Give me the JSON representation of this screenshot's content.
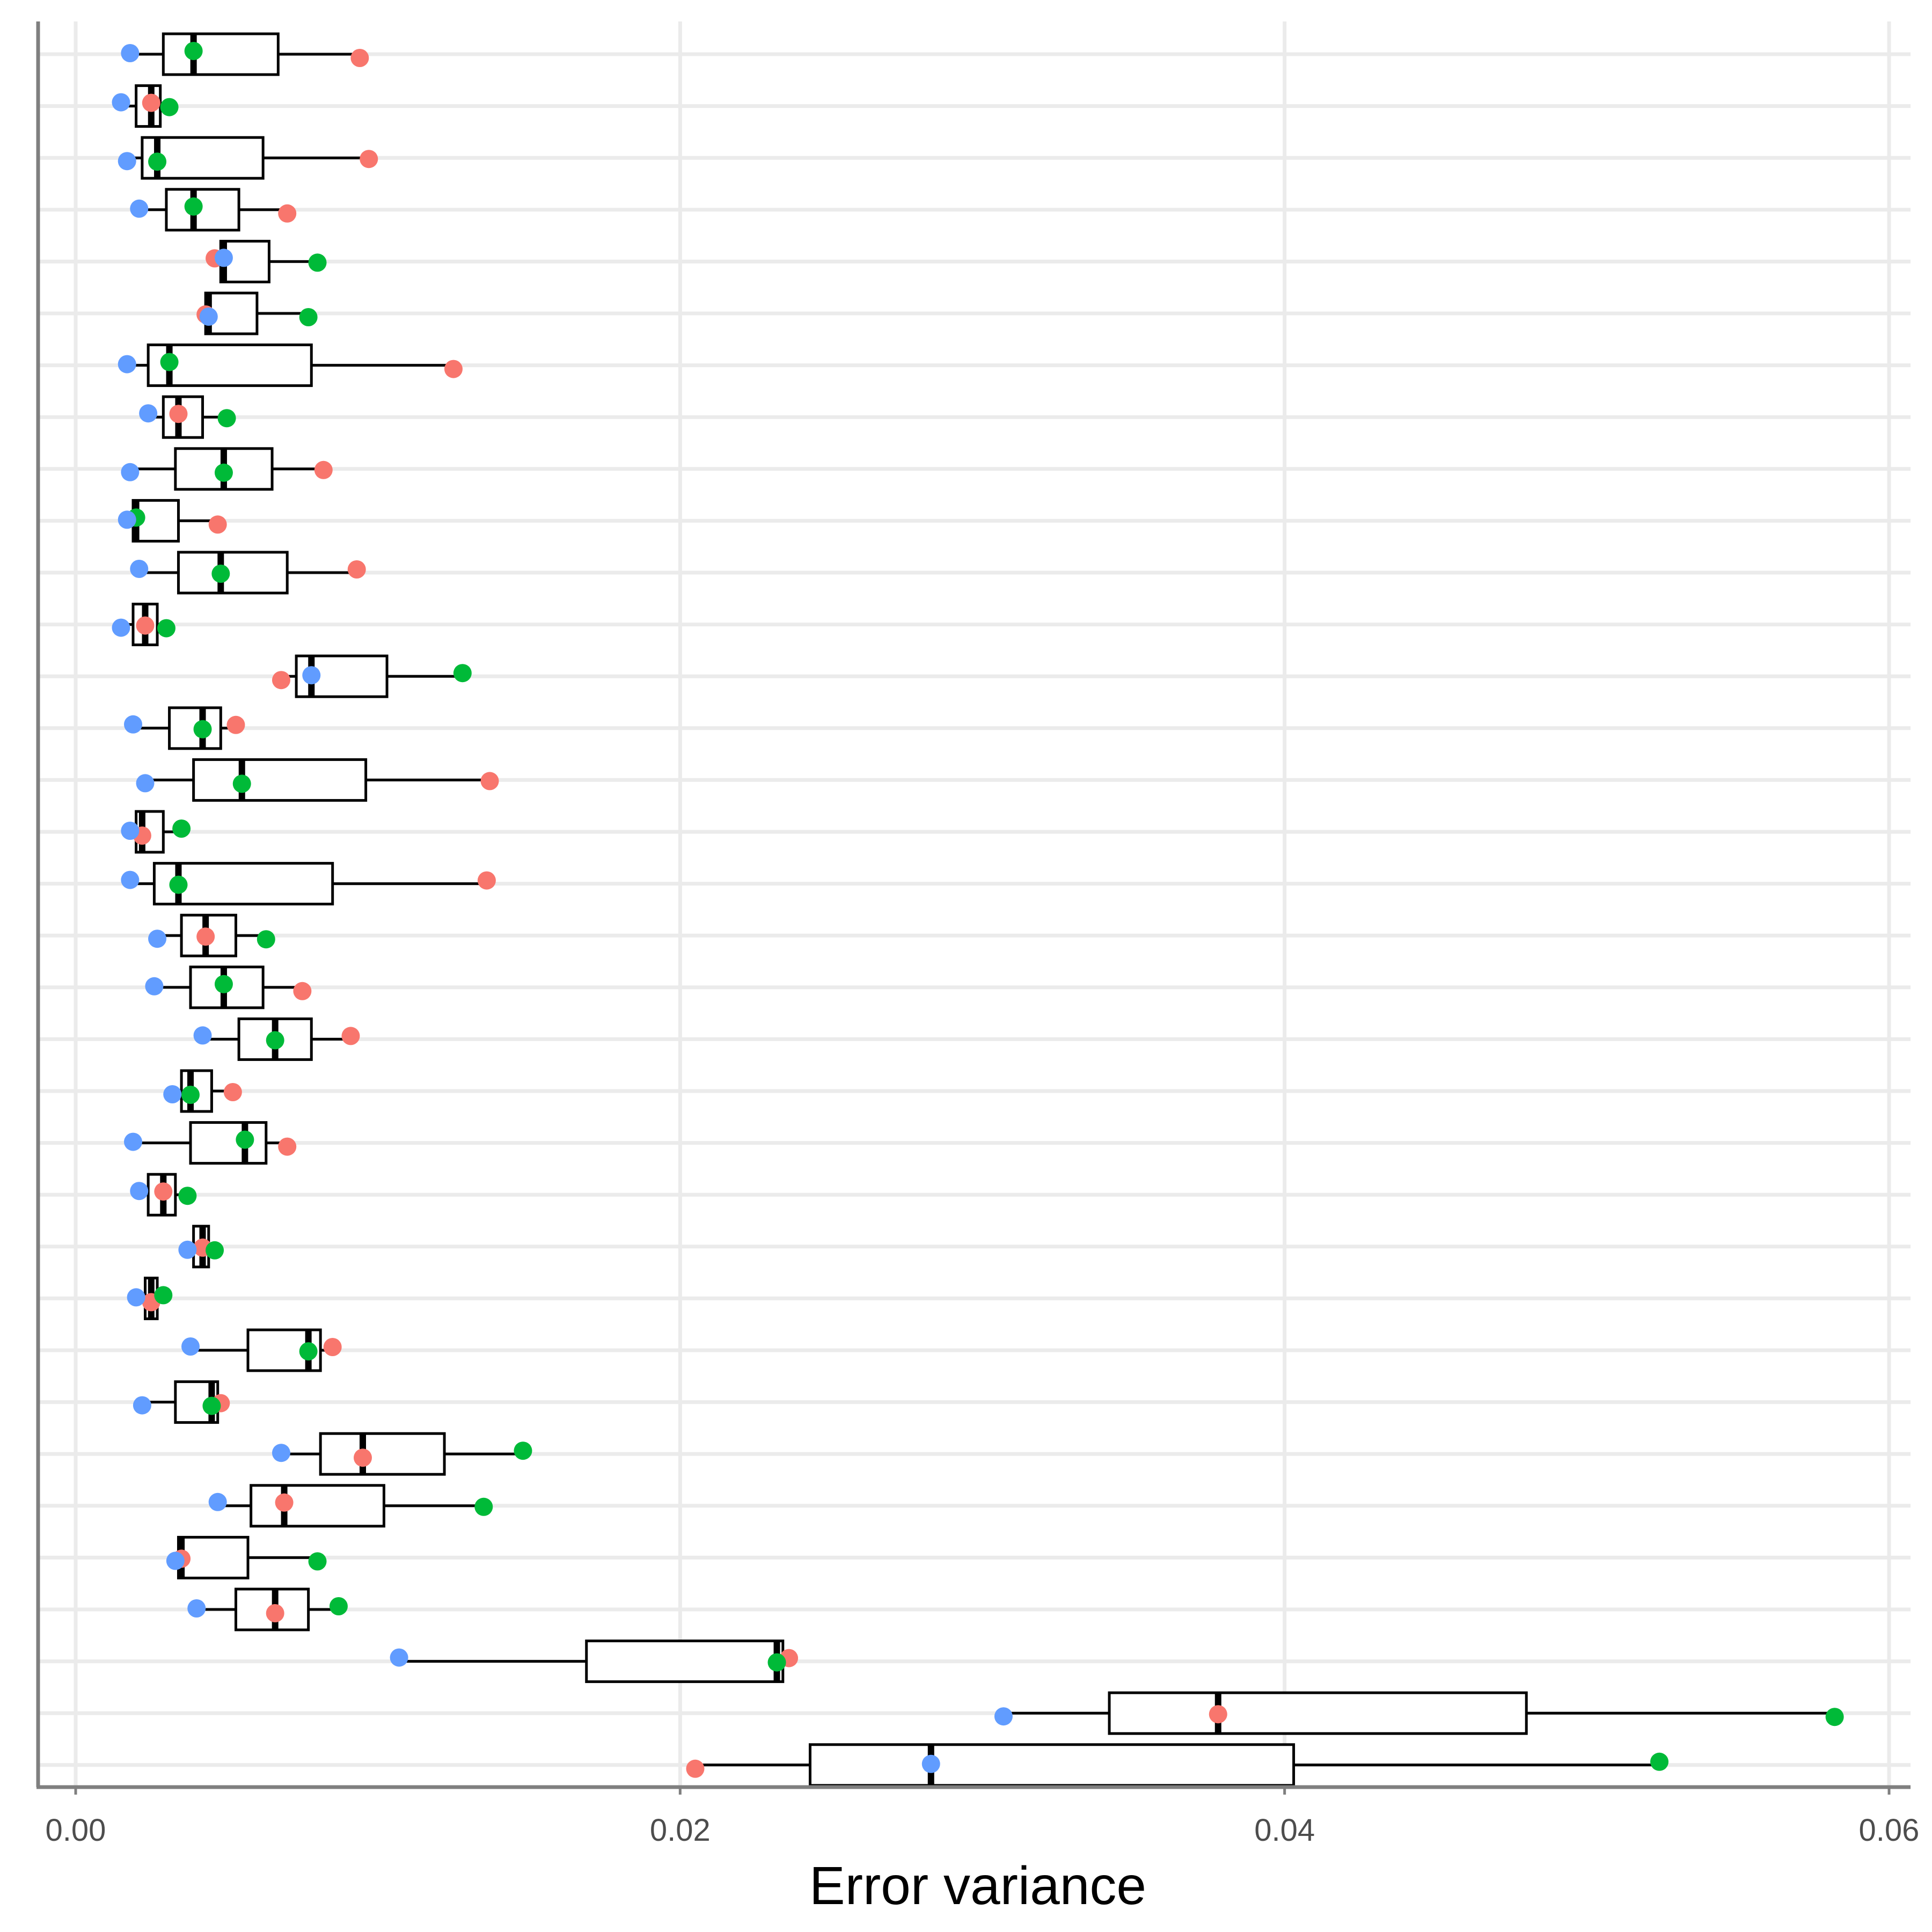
{
  "chart_data": {
    "type": "boxplot",
    "orientation": "horizontal",
    "xlabel": "Error variance",
    "ylabel": "",
    "xlim": [
      -0.0013,
      0.0609
    ],
    "x_ticks": [
      0.0,
      0.02,
      0.04,
      0.06
    ],
    "x_tick_labels": [
      "0.00",
      "0.02",
      "0.04",
      "0.06"
    ],
    "grid": true,
    "legend": "none",
    "point_series_colors": [
      "#F8766D",
      "#00BA38",
      "#619CFF"
    ],
    "box_style": {
      "fill": "#ffffff",
      "stroke": "#000000"
    },
    "rows": [
      {
        "box": {
          "min": 0.0019,
          "q1": 0.0029,
          "median": 0.0039,
          "q3": 0.0067,
          "max": 0.0094
        },
        "points": [
          0.0094,
          0.0039,
          0.0018
        ]
      },
      {
        "box": {
          "min": 0.0016,
          "q1": 0.002,
          "median": 0.0025,
          "q3": 0.0028,
          "max": 0.0032
        },
        "points": [
          0.0025,
          0.0031,
          0.0015
        ]
      },
      {
        "box": {
          "min": 0.0018,
          "q1": 0.0022,
          "median": 0.0027,
          "q3": 0.0062,
          "max": 0.0097
        },
        "points": [
          0.0097,
          0.0027,
          0.0017
        ]
      },
      {
        "box": {
          "min": 0.0022,
          "q1": 0.003,
          "median": 0.0039,
          "q3": 0.0054,
          "max": 0.007
        },
        "points": [
          0.007,
          0.0039,
          0.0021
        ]
      },
      {
        "box": {
          "min": 0.0046,
          "q1": 0.0048,
          "median": 0.0049,
          "q3": 0.0064,
          "max": 0.008
        },
        "points": [
          0.0046,
          0.008,
          0.0049
        ]
      },
      {
        "box": {
          "min": 0.0043,
          "q1": 0.0043,
          "median": 0.0044,
          "q3": 0.006,
          "max": 0.0077
        },
        "points": [
          0.0043,
          0.0077,
          0.0044
        ]
      },
      {
        "box": {
          "min": 0.0017,
          "q1": 0.0024,
          "median": 0.0031,
          "q3": 0.0078,
          "max": 0.0125
        },
        "points": [
          0.0125,
          0.0031,
          0.0017
        ]
      },
      {
        "box": {
          "min": 0.0024,
          "q1": 0.0029,
          "median": 0.0034,
          "q3": 0.0042,
          "max": 0.005
        },
        "points": [
          0.0034,
          0.005,
          0.0024
        ]
      },
      {
        "box": {
          "min": 0.0018,
          "q1": 0.0033,
          "median": 0.0049,
          "q3": 0.0065,
          "max": 0.0082
        },
        "points": [
          0.0082,
          0.0049,
          0.0018
        ]
      },
      {
        "box": {
          "min": 0.0017,
          "q1": 0.0019,
          "median": 0.002,
          "q3": 0.0034,
          "max": 0.0047
        },
        "points": [
          0.0047,
          0.002,
          0.0017
        ]
      },
      {
        "box": {
          "min": 0.0021,
          "q1": 0.0034,
          "median": 0.0048,
          "q3": 0.007,
          "max": 0.0093
        },
        "points": [
          0.0093,
          0.0048,
          0.0021
        ]
      },
      {
        "box": {
          "min": 0.0015,
          "q1": 0.0019,
          "median": 0.0023,
          "q3": 0.0027,
          "max": 0.003
        },
        "points": [
          0.0023,
          0.003,
          0.0015
        ]
      },
      {
        "box": {
          "min": 0.0068,
          "q1": 0.0073,
          "median": 0.0078,
          "q3": 0.0103,
          "max": 0.0128
        },
        "points": [
          0.0068,
          0.0128,
          0.0078
        ]
      },
      {
        "box": {
          "min": 0.0019,
          "q1": 0.0031,
          "median": 0.0042,
          "q3": 0.0048,
          "max": 0.0053
        },
        "points": [
          0.0053,
          0.0042,
          0.0019
        ]
      },
      {
        "box": {
          "min": 0.0023,
          "q1": 0.0039,
          "median": 0.0055,
          "q3": 0.0096,
          "max": 0.0137
        },
        "points": [
          0.0137,
          0.0055,
          0.0023
        ]
      },
      {
        "box": {
          "min": 0.0018,
          "q1": 0.002,
          "median": 0.0022,
          "q3": 0.0029,
          "max": 0.0035
        },
        "points": [
          0.0022,
          0.0035,
          0.0018
        ]
      },
      {
        "box": {
          "min": 0.0018,
          "q1": 0.0026,
          "median": 0.0034,
          "q3": 0.0085,
          "max": 0.0136
        },
        "points": [
          0.0136,
          0.0034,
          0.0018
        ]
      },
      {
        "box": {
          "min": 0.0027,
          "q1": 0.0035,
          "median": 0.0043,
          "q3": 0.0053,
          "max": 0.0063
        },
        "points": [
          0.0043,
          0.0063,
          0.0027
        ]
      },
      {
        "box": {
          "min": 0.0026,
          "q1": 0.0038,
          "median": 0.0049,
          "q3": 0.0062,
          "max": 0.0075
        },
        "points": [
          0.0075,
          0.0049,
          0.0026
        ]
      },
      {
        "box": {
          "min": 0.0042,
          "q1": 0.0054,
          "median": 0.0066,
          "q3": 0.0078,
          "max": 0.0091
        },
        "points": [
          0.0091,
          0.0066,
          0.0042
        ]
      },
      {
        "box": {
          "min": 0.0032,
          "q1": 0.0035,
          "median": 0.0038,
          "q3": 0.0045,
          "max": 0.0052
        },
        "points": [
          0.0052,
          0.0038,
          0.0032
        ]
      },
      {
        "box": {
          "min": 0.0019,
          "q1": 0.0038,
          "median": 0.0056,
          "q3": 0.0063,
          "max": 0.007
        },
        "points": [
          0.007,
          0.0056,
          0.0019
        ]
      },
      {
        "box": {
          "min": 0.0021,
          "q1": 0.0024,
          "median": 0.0029,
          "q3": 0.0033,
          "max": 0.0037
        },
        "points": [
          0.0029,
          0.0037,
          0.0021
        ]
      },
      {
        "box": {
          "min": 0.0037,
          "q1": 0.0039,
          "median": 0.0042,
          "q3": 0.0044,
          "max": 0.0046
        },
        "points": [
          0.0042,
          0.0046,
          0.0037
        ]
      },
      {
        "box": {
          "min": 0.002,
          "q1": 0.0023,
          "median": 0.0025,
          "q3": 0.0027,
          "max": 0.0029
        },
        "points": [
          0.0025,
          0.0029,
          0.002
        ]
      },
      {
        "box": {
          "min": 0.0038,
          "q1": 0.0057,
          "median": 0.0077,
          "q3": 0.0081,
          "max": 0.0085
        },
        "points": [
          0.0085,
          0.0077,
          0.0038
        ]
      },
      {
        "box": {
          "min": 0.0022,
          "q1": 0.0033,
          "median": 0.0045,
          "q3": 0.0047,
          "max": 0.0048
        },
        "points": [
          0.0048,
          0.0045,
          0.0022
        ]
      },
      {
        "box": {
          "min": 0.0068,
          "q1": 0.0081,
          "median": 0.0095,
          "q3": 0.0122,
          "max": 0.0148
        },
        "points": [
          0.0095,
          0.0148,
          0.0068
        ]
      },
      {
        "box": {
          "min": 0.0047,
          "q1": 0.0058,
          "median": 0.0069,
          "q3": 0.0102,
          "max": 0.0135
        },
        "points": [
          0.0069,
          0.0135,
          0.0047
        ]
      },
      {
        "box": {
          "min": 0.0033,
          "q1": 0.0034,
          "median": 0.0035,
          "q3": 0.0057,
          "max": 0.008
        },
        "points": [
          0.0035,
          0.008,
          0.0033
        ]
      },
      {
        "box": {
          "min": 0.004,
          "q1": 0.0053,
          "median": 0.0066,
          "q3": 0.0077,
          "max": 0.0087
        },
        "points": [
          0.0066,
          0.0087,
          0.004
        ]
      },
      {
        "box": {
          "min": 0.0107,
          "q1": 0.0169,
          "median": 0.0232,
          "q3": 0.0234,
          "max": 0.0236
        },
        "points": [
          0.0236,
          0.0232,
          0.0107
        ]
      },
      {
        "box": {
          "min": 0.0307,
          "q1": 0.0342,
          "median": 0.0378,
          "q3": 0.048,
          "max": 0.0582
        },
        "points": [
          0.0378,
          0.0582,
          0.0307
        ]
      },
      {
        "box": {
          "min": 0.0205,
          "q1": 0.0243,
          "median": 0.0283,
          "q3": 0.0403,
          "max": 0.0524
        },
        "points": [
          0.0205,
          0.0524,
          0.0283
        ]
      }
    ]
  }
}
